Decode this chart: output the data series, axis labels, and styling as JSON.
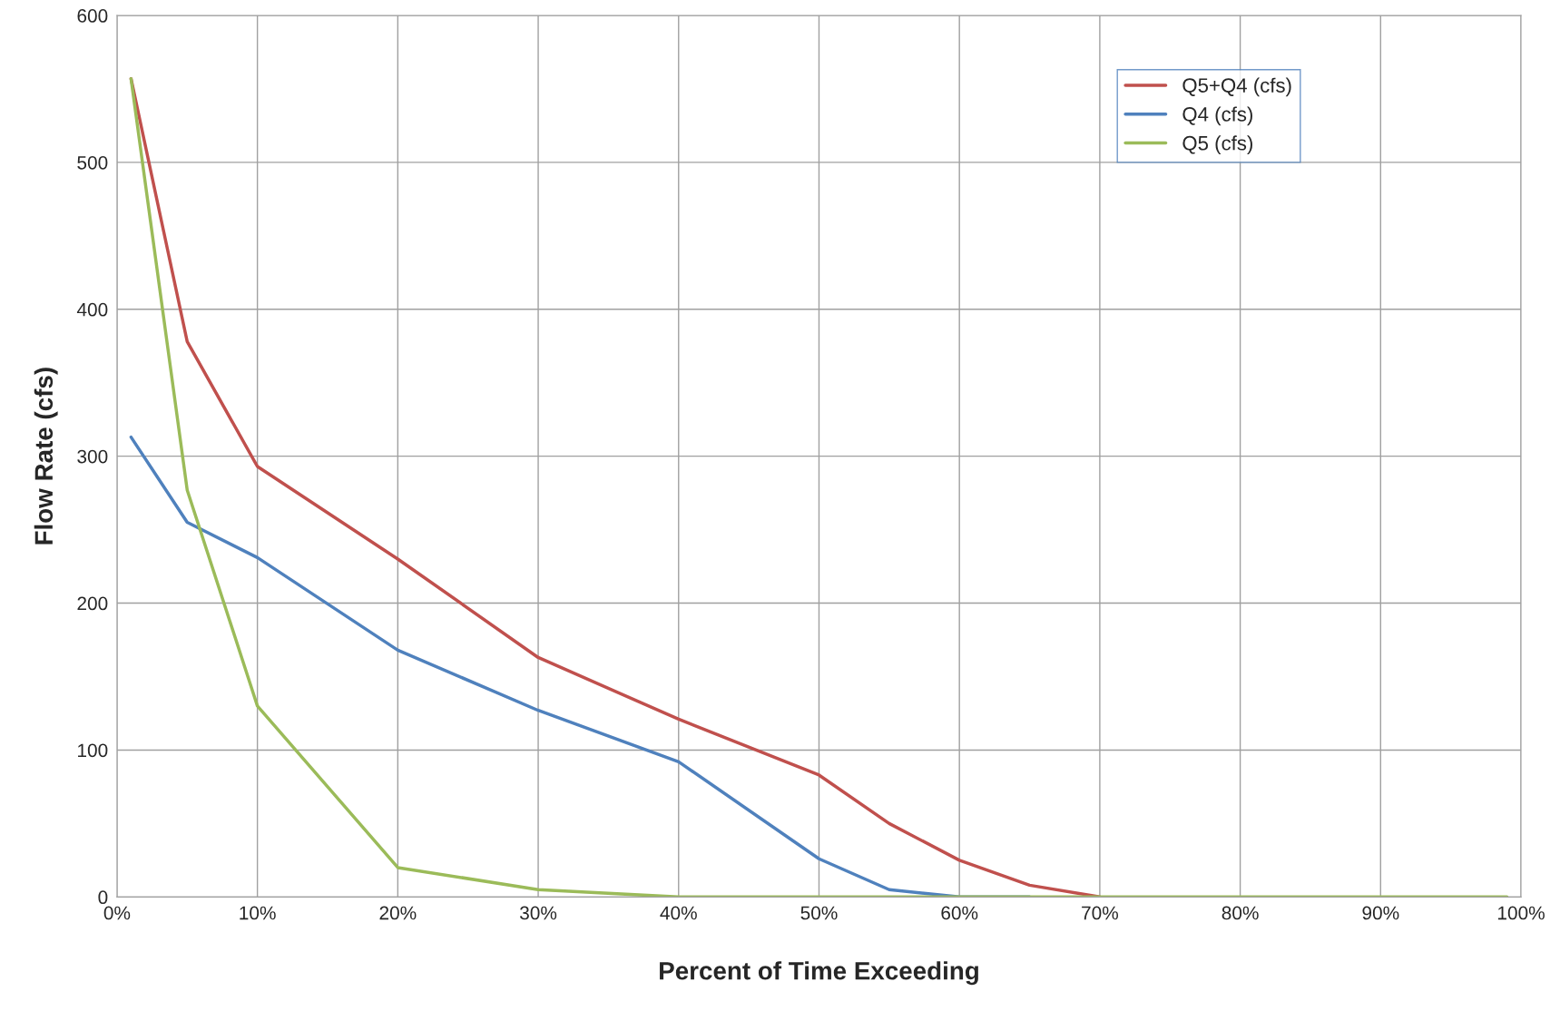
{
  "chart_data": {
    "type": "line",
    "xlabel": "Percent of Time Exceeding",
    "ylabel": "Flow Rate (cfs)",
    "x": [
      1,
      5,
      10,
      20,
      30,
      40,
      50,
      55,
      60,
      65,
      70,
      80,
      90,
      99
    ],
    "series": [
      {
        "name": "Q5+Q4 (cfs)",
        "color": "#c0504d",
        "values": [
          557,
          378,
          293,
          230,
          163,
          121,
          83,
          50,
          25,
          8,
          0,
          null,
          null,
          null
        ]
      },
      {
        "name": "Q4 (cfs)",
        "color": "#4f81bd",
        "values": [
          313,
          255,
          231,
          168,
          127,
          92,
          26,
          5,
          0,
          0,
          null,
          null,
          null,
          null
        ]
      },
      {
        "name": "Q5 (cfs)",
        "color": "#9bbb59",
        "values": [
          557,
          277,
          130,
          20,
          5,
          0,
          0,
          0,
          0,
          0,
          0,
          0,
          0,
          0
        ]
      }
    ],
    "xlim": [
      0,
      100
    ],
    "ylim": [
      0,
      600
    ],
    "xticks": [
      {
        "value": 0,
        "label": "0%"
      },
      {
        "value": 10,
        "label": "10%"
      },
      {
        "value": 20,
        "label": "20%"
      },
      {
        "value": 30,
        "label": "30%"
      },
      {
        "value": 40,
        "label": "40%"
      },
      {
        "value": 50,
        "label": "50%"
      },
      {
        "value": 60,
        "label": "60%"
      },
      {
        "value": 70,
        "label": "70%"
      },
      {
        "value": 80,
        "label": "80%"
      },
      {
        "value": 90,
        "label": "90%"
      },
      {
        "value": 100,
        "label": "100%"
      }
    ],
    "yticks": [
      0,
      100,
      200,
      300,
      400,
      500,
      600
    ],
    "grid": true,
    "legend": "top right",
    "marker": "none",
    "line_style": "solid"
  }
}
